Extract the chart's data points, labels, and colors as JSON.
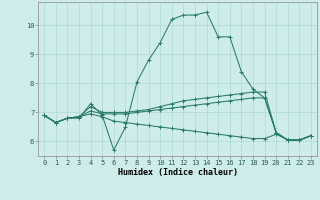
{
  "xlabel": "Humidex (Indice chaleur)",
  "bg_color": "#ceecea",
  "grid_color": "#aed8d4",
  "line_color": "#2a7a6a",
  "xlim": [
    -0.5,
    23.5
  ],
  "ylim": [
    5.5,
    10.8
  ],
  "yticks": [
    6,
    7,
    8,
    9,
    10
  ],
  "xticks": [
    0,
    1,
    2,
    3,
    4,
    5,
    6,
    7,
    8,
    9,
    10,
    11,
    12,
    13,
    14,
    15,
    16,
    17,
    18,
    19,
    20,
    21,
    22,
    23
  ],
  "y_main": [
    6.9,
    6.65,
    6.8,
    6.8,
    7.3,
    6.9,
    5.7,
    6.5,
    8.05,
    8.8,
    9.4,
    10.2,
    10.35,
    10.35,
    10.45,
    9.6,
    9.6,
    8.4,
    7.8,
    7.5,
    6.3,
    6.05,
    6.05,
    6.2
  ],
  "y_line1": [
    6.9,
    6.65,
    6.8,
    6.85,
    7.2,
    7.0,
    7.0,
    7.0,
    7.05,
    7.1,
    7.2,
    7.3,
    7.4,
    7.45,
    7.5,
    7.55,
    7.6,
    7.65,
    7.7,
    7.7,
    6.3,
    6.05,
    6.05,
    6.2
  ],
  "y_line2": [
    6.9,
    6.65,
    6.8,
    6.85,
    7.05,
    6.95,
    6.95,
    6.95,
    7.0,
    7.05,
    7.1,
    7.15,
    7.2,
    7.25,
    7.3,
    7.35,
    7.4,
    7.45,
    7.5,
    7.5,
    6.3,
    6.05,
    6.05,
    6.2
  ],
  "y_line3": [
    6.9,
    6.65,
    6.8,
    6.85,
    6.95,
    6.85,
    6.7,
    6.65,
    6.6,
    6.55,
    6.5,
    6.45,
    6.4,
    6.35,
    6.3,
    6.25,
    6.2,
    6.15,
    6.1,
    6.1,
    6.25,
    6.05,
    6.05,
    6.2
  ]
}
